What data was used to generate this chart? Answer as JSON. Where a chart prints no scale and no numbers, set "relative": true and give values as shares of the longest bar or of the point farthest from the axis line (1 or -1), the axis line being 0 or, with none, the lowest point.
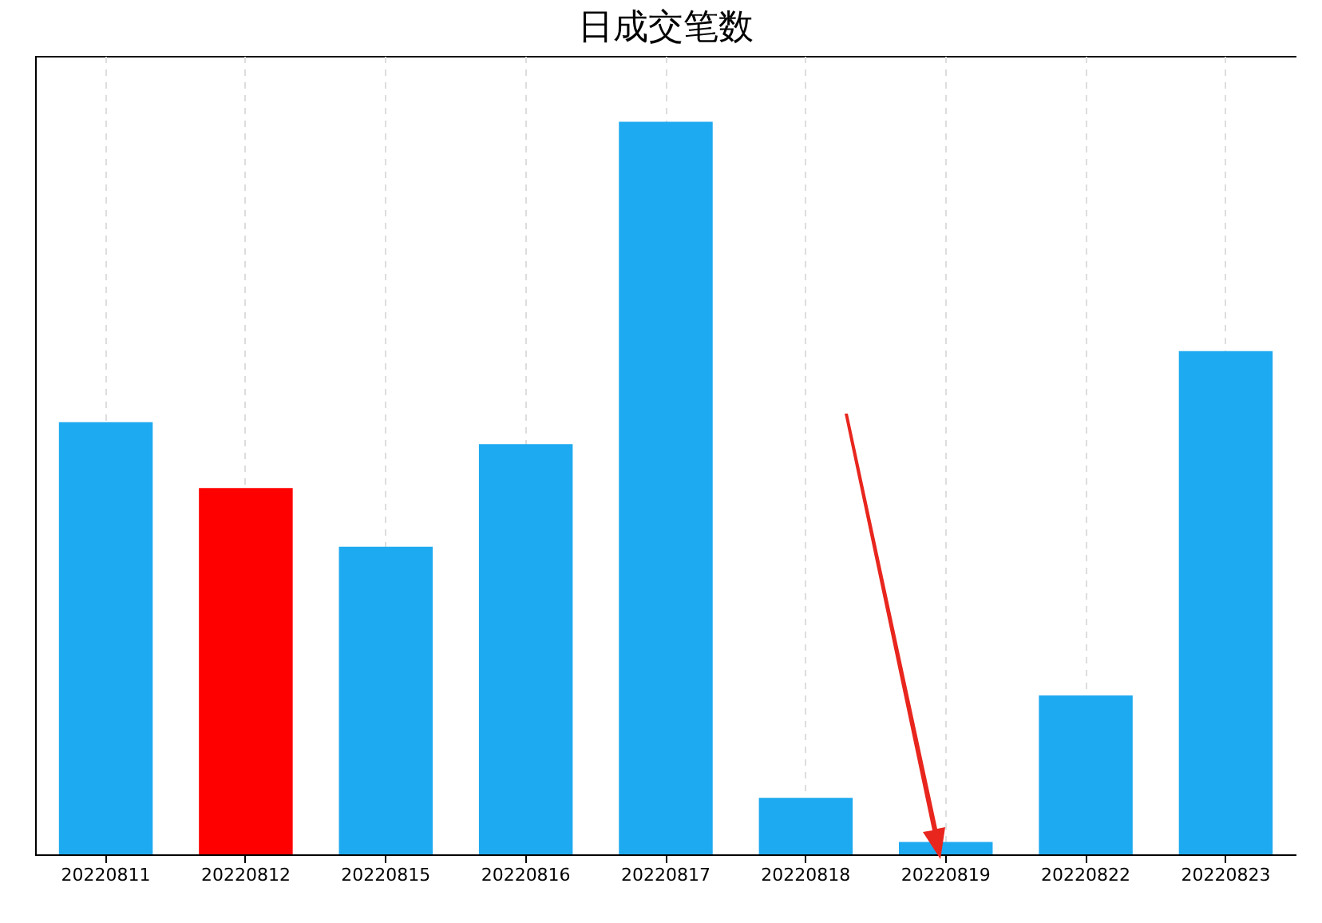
{
  "chart_data": {
    "type": "bar",
    "title": "日成交笔数",
    "relative": true,
    "categories": [
      "20220811",
      "20220812",
      "20220815",
      "20220816",
      "20220817",
      "20220818",
      "20220819",
      "20220822",
      "20220823"
    ],
    "values": [
      0.59,
      0.5,
      0.42,
      0.56,
      1,
      0.077,
      0.017,
      0.217,
      0.687
    ],
    "colors": [
      "#1eaaf0",
      "#ff0000",
      "#1eaaf0",
      "#1eaaf0",
      "#1eaaf0",
      "#1eaaf0",
      "#1eaaf0",
      "#1eaaf0",
      "#1eaaf0"
    ],
    "grid": "x"
  }
}
